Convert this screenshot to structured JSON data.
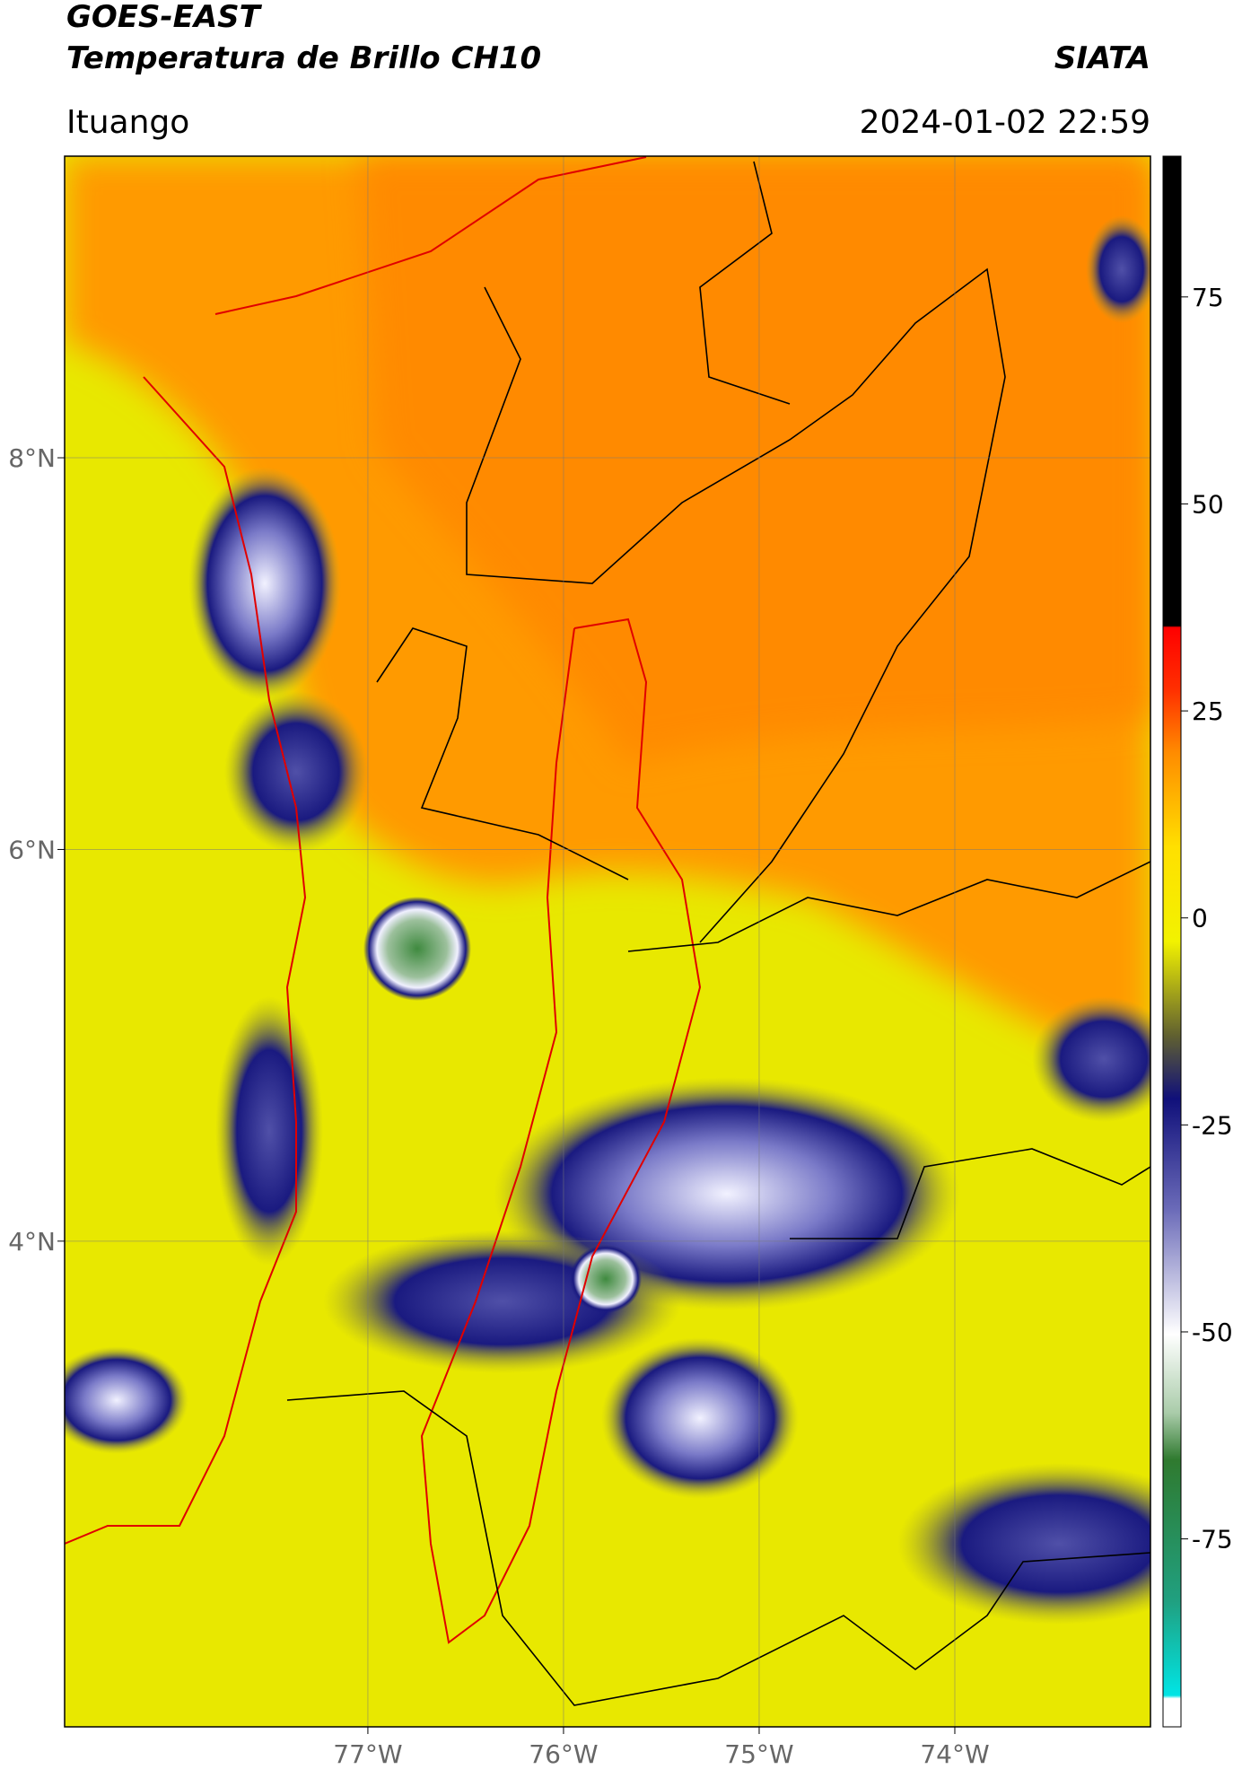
{
  "header": {
    "title": "GOES-EAST",
    "subtitle": "Temperatura de Brillo CH10",
    "source": "SIATA",
    "location": "Ituango",
    "datetime": "2024-01-02 22:59"
  },
  "map": {
    "xlim": [
      -78.55,
      -73.0
    ],
    "ylim": [
      1.52,
      9.54
    ],
    "xticks": [
      {
        "value": -77,
        "label": "77°W"
      },
      {
        "value": -76,
        "label": "76°W"
      },
      {
        "value": -75,
        "label": "75°W"
      },
      {
        "value": -74,
        "label": "74°W"
      }
    ],
    "yticks": [
      {
        "value": 8,
        "label": "8°N"
      },
      {
        "value": 6,
        "label": "6°N"
      },
      {
        "value": 4,
        "label": "4°N"
      }
    ],
    "grid": true
  },
  "colorbar": {
    "ylim": [
      -97.7,
      92
    ],
    "yticks": [
      75,
      50,
      25,
      0,
      -25,
      -50,
      -75
    ]
  }
}
